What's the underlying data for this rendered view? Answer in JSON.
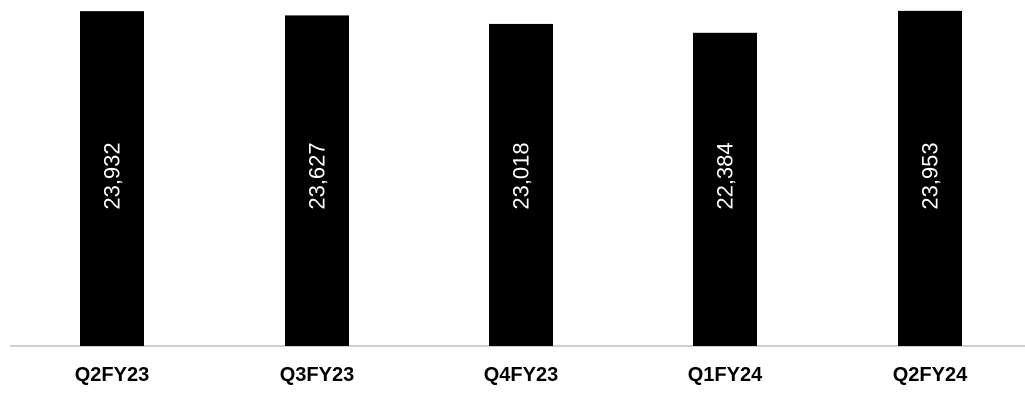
{
  "chart_data": {
    "type": "bar",
    "categories": [
      "Q2FY23",
      "Q3FY23",
      "Q4FY23",
      "Q1FY24",
      "Q2FY24"
    ],
    "values": [
      23932,
      23627,
      23018,
      22384,
      23953
    ],
    "value_labels": [
      "23,932",
      "23,627",
      "23,018",
      "22,384",
      "23,953"
    ],
    "title": "",
    "xlabel": "",
    "ylabel": "",
    "ylim": [
      0,
      24300
    ],
    "grid": false,
    "legend": "none",
    "data_label_orientation": "vertical",
    "colors": {
      "bar": "#000000",
      "data_label": "#ffffff",
      "category_label": "#000000",
      "axis_line": "#bfbfbf"
    }
  }
}
